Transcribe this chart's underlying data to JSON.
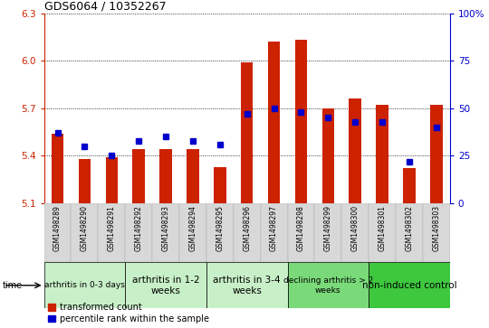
{
  "title": "GDS6064 / 10352267",
  "samples": [
    "GSM1498289",
    "GSM1498290",
    "GSM1498291",
    "GSM1498292",
    "GSM1498293",
    "GSM1498294",
    "GSM1498295",
    "GSM1498296",
    "GSM1498297",
    "GSM1498298",
    "GSM1498299",
    "GSM1498300",
    "GSM1498301",
    "GSM1498302",
    "GSM1498303"
  ],
  "transformed_count": [
    5.54,
    5.38,
    5.39,
    5.44,
    5.44,
    5.44,
    5.33,
    5.99,
    6.12,
    6.13,
    5.7,
    5.76,
    5.72,
    5.32,
    5.72
  ],
  "percentile_rank": [
    37,
    30,
    25,
    33,
    35,
    33,
    31,
    47,
    50,
    48,
    45,
    43,
    43,
    22,
    40
  ],
  "groups": [
    {
      "label": "arthritis in 0-3 days",
      "start": 0,
      "end": 3,
      "color": "#c8f0c8",
      "small": true
    },
    {
      "label": "arthritis in 1-2\nweeks",
      "start": 3,
      "end": 6,
      "color": "#c8f0c8",
      "small": false
    },
    {
      "label": "arthritis in 3-4\nweeks",
      "start": 6,
      "end": 9,
      "color": "#c8f0c8",
      "small": false
    },
    {
      "label": "declining arthritis > 2\nweeks",
      "start": 9,
      "end": 12,
      "color": "#7ada7a",
      "small": false
    },
    {
      "label": "non-induced control",
      "start": 12,
      "end": 15,
      "color": "#3ec83e",
      "small": false
    }
  ],
  "ylim_left": [
    5.1,
    6.3
  ],
  "ylim_right": [
    0,
    100
  ],
  "yticks_left": [
    5.1,
    5.4,
    5.7,
    6.0,
    6.3
  ],
  "yticks_right": [
    0,
    25,
    50,
    75,
    100
  ],
  "bar_color": "#cc2200",
  "dot_color": "#0000cc",
  "bar_width": 0.45,
  "baseline": 5.1,
  "tick_label_color": "#cc2200",
  "right_tick_color": "#0000cc"
}
